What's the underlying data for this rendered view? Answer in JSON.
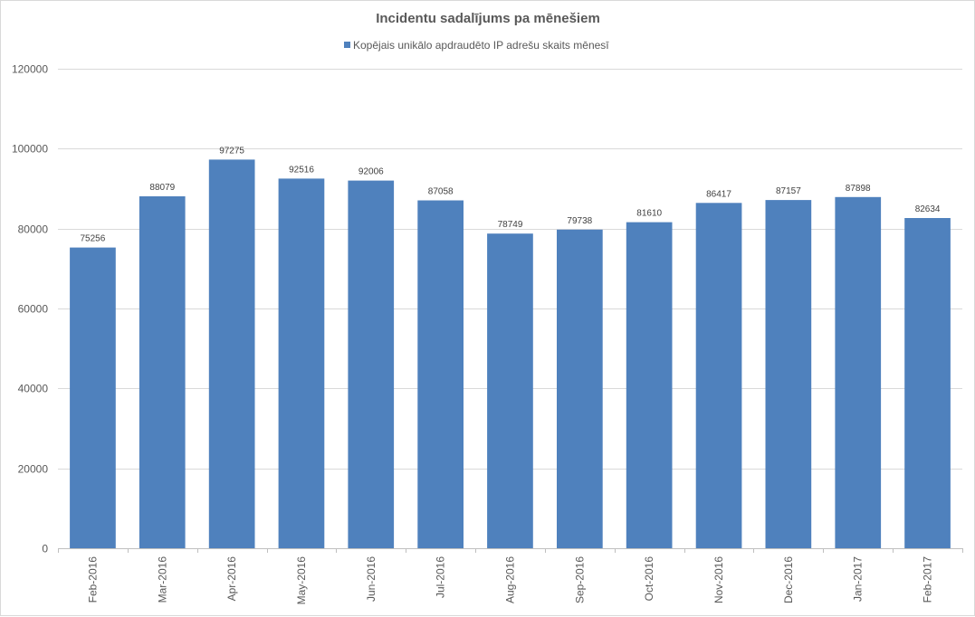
{
  "chart_data": {
    "type": "bar",
    "title": "Incidentu sadalījums pa mēnešiem",
    "xlabel": "",
    "ylabel": "",
    "legend_position": "top",
    "grid": true,
    "ylim": [
      0,
      120000
    ],
    "yticks": [
      0,
      20000,
      40000,
      60000,
      80000,
      100000,
      120000
    ],
    "ytick_labels": [
      "0",
      "20000",
      "40000",
      "60000",
      "80000",
      "100000",
      "120000"
    ],
    "categories": [
      "Feb-2016",
      "Mar-2016",
      "Apr-2016",
      "May-2016",
      "Jun-2016",
      "Jul-2016",
      "Aug-2016",
      "Sep-2016",
      "Oct-2016",
      "Nov-2016",
      "Dec-2016",
      "Jan-2017",
      "Feb-2017"
    ],
    "series": [
      {
        "name": "Kopējais unikālo apdraudēto IP adrešu skaits mēnesī",
        "color": "#4f81bd",
        "values": [
          75256,
          88079,
          97275,
          92516,
          92006,
          87058,
          78749,
          79738,
          81610,
          86417,
          87157,
          87898,
          82634
        ],
        "labels": [
          "75256",
          "88079",
          "97275",
          "92516",
          "92006",
          "87058",
          "78749",
          "79738",
          "81610",
          "86417",
          "87157",
          "87898",
          "82634"
        ]
      }
    ]
  }
}
